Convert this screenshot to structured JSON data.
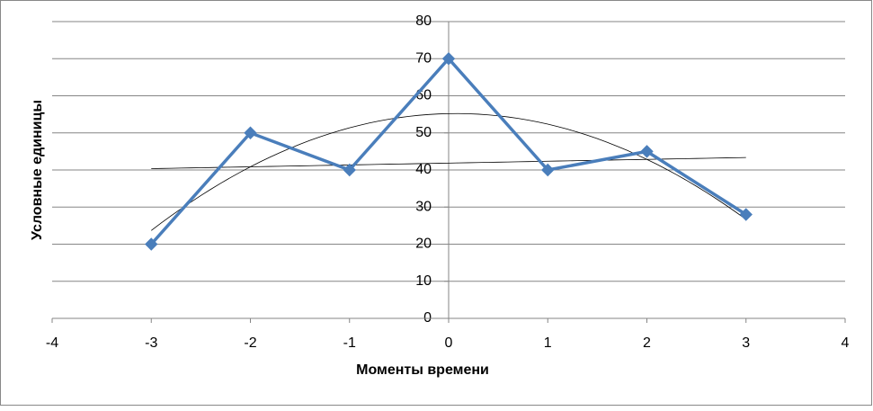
{
  "chart_data": {
    "type": "scatter",
    "x_label": "Моменты времени",
    "y_label": "Условные единицы",
    "series": [
      {
        "color": "#4a7ebb",
        "x": [
          -3,
          -2,
          -1,
          0,
          1,
          2,
          3
        ],
        "values": [
          20,
          50,
          40,
          70,
          40,
          45,
          28
        ]
      }
    ],
    "trendlines": [
      {
        "kind": "linear"
      },
      {
        "kind": "polynomial",
        "order": 2
      }
    ],
    "xlim": [
      -4,
      4
    ],
    "xticks": [
      -4,
      -3,
      -2,
      -1,
      0,
      1,
      2,
      3,
      4
    ],
    "ylim": [
      0,
      80
    ],
    "yticks": [
      0,
      10,
      20,
      30,
      40,
      50,
      60,
      70,
      80
    ],
    "grid": true
  }
}
